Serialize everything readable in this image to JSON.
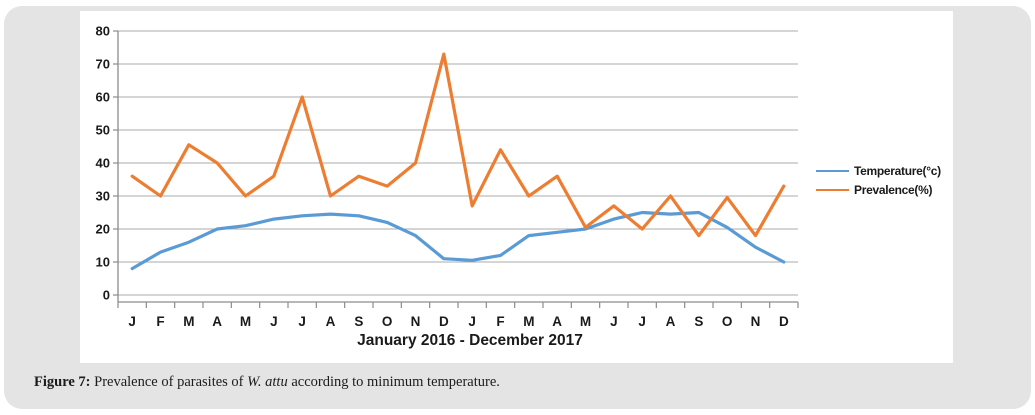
{
  "panel": {
    "background": "#e4e4e4",
    "chart_background": "#ffffff"
  },
  "chart_data": {
    "type": "line",
    "x_categories": [
      "J",
      "F",
      "M",
      "A",
      "M",
      "J",
      "J",
      "A",
      "S",
      "O",
      "N",
      "D",
      "J",
      "F",
      "M",
      "A",
      "M",
      "J",
      "J",
      "A",
      "S",
      "O",
      "N",
      "D"
    ],
    "series": [
      {
        "name": "Temperature(°c)",
        "color": "#5b9bd5",
        "values": [
          8,
          13,
          16,
          20,
          21,
          23,
          24,
          24.5,
          24,
          22,
          18,
          11,
          10.5,
          12,
          18,
          19,
          20,
          23,
          25,
          24.5,
          25,
          20.5,
          14.5,
          10
        ]
      },
      {
        "name": "Prevalence(%)",
        "color": "#ed7d31",
        "values": [
          36,
          30,
          45.5,
          40,
          30,
          36,
          60,
          30,
          36,
          33,
          40,
          73,
          27,
          44,
          30,
          36,
          20.5,
          27,
          20,
          30,
          18,
          29.5,
          18,
          33
        ]
      }
    ],
    "xlabel": "January 2016 - December 2017",
    "ylabel": "",
    "ylim": [
      0,
      80
    ],
    "y_ticks": [
      0,
      10,
      20,
      30,
      40,
      50,
      60,
      70,
      80
    ],
    "grid": "horizontal",
    "legend_position": "right",
    "gridline_color": "#ababab",
    "axis_color": "#8c8c8c",
    "label_color": "#1a1a1a"
  },
  "caption": {
    "label": "Figure 7:",
    "before_species": " Prevalence of parasites of ",
    "species": "W. attu",
    "after_species": " according to minimum temperature."
  }
}
